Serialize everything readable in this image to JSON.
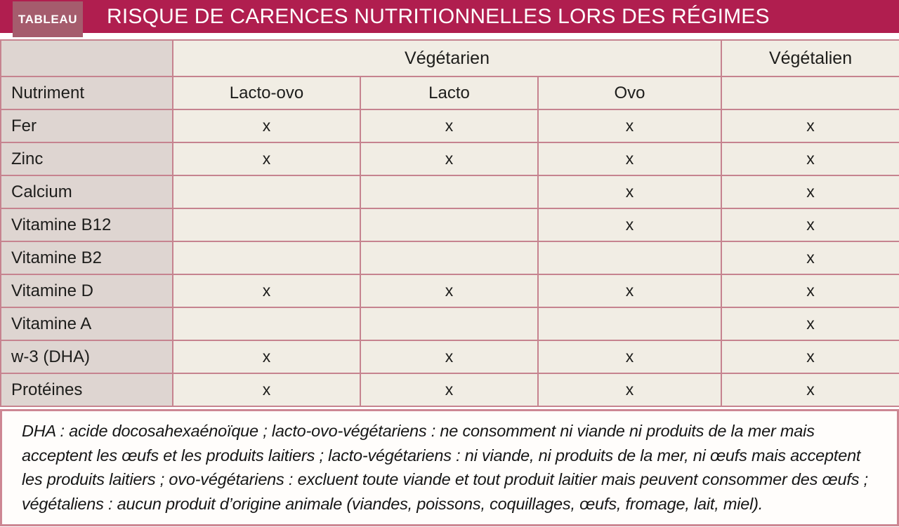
{
  "header": {
    "tag": "TABLEAU",
    "title": "RISQUE DE CARENCES NUTRITIONNELLES LORS DES RÉGIMES"
  },
  "table": {
    "group_headers": {
      "vegetarien": "Végétarien",
      "vegetalien": "Végétalien"
    },
    "col_headers": [
      "Nutriment",
      "Lacto-ovo",
      "Lacto",
      "Ovo",
      ""
    ],
    "rows": [
      {
        "label": "Fer",
        "cells": [
          "x",
          "x",
          "x",
          "x"
        ]
      },
      {
        "label": "Zinc",
        "cells": [
          "x",
          "x",
          "x",
          "x"
        ]
      },
      {
        "label": "Calcium",
        "cells": [
          "",
          "",
          "x",
          "x"
        ]
      },
      {
        "label": "Vitamine B12",
        "cells": [
          "",
          "",
          "x",
          "x"
        ]
      },
      {
        "label": "Vitamine B2",
        "cells": [
          "",
          "",
          "",
          "x"
        ]
      },
      {
        "label": "Vitamine D",
        "cells": [
          "x",
          "x",
          "x",
          "x"
        ]
      },
      {
        "label": "Vitamine A",
        "cells": [
          "",
          "",
          "",
          "x"
        ]
      },
      {
        "label": "w-3 (DHA)",
        "cells": [
          "x",
          "x",
          "x",
          "x"
        ]
      },
      {
        "label": "Protéines",
        "cells": [
          "x",
          "x",
          "x",
          "x"
        ]
      }
    ]
  },
  "footnote_lines": [
    "DHA : acide docosahexaénoïque ; lacto-ovo-végétariens : ne consomment ni viande ni produits de la mer mais",
    "acceptent les œufs et les produits laitiers ; lacto-végétariens : ni viande, ni produits de la mer, ni œufs mais acceptent",
    "les produits laitiers ; ovo-végétariens : excluent toute viande et tout produit laitier mais peuvent consommer des œufs ;",
    "végétaliens : aucun produit d’origine animale (viandes, poissons, coquillages, œufs, fromage, lait, miel)."
  ],
  "colors": {
    "header_bar": "#b01e4f",
    "tag_box": "#a55c6d",
    "table_border": "#c6838f",
    "label_cell_bg": "#ded5d1",
    "data_cell_bg": "#f1ede4",
    "footnote_border": "#cd8793",
    "footnote_bg": "#fffdfb"
  }
}
